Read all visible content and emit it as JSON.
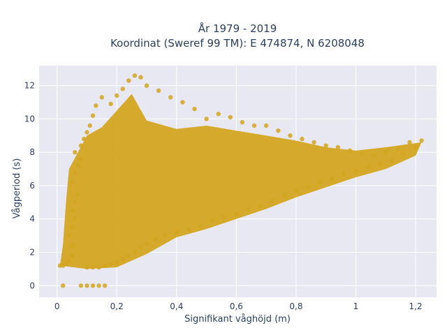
{
  "chart_data": {
    "type": "scatter",
    "title_line1": "År 1979 - 2019",
    "title_line2": "Koordinat (Sweref 99 TM): E 474874, N 6208048",
    "xlabel": "Signifikant våghöjd (m)",
    "ylabel": "Vågperiod (s)",
    "xlim": [
      -0.06,
      1.27
    ],
    "ylim": [
      -0.7,
      13.2
    ],
    "x_ticks": [
      0,
      0.2,
      0.4,
      0.6,
      0.8,
      1,
      1.2
    ],
    "x_tick_labels": [
      "0",
      "0,2",
      "0,4",
      "0,6",
      "0,8",
      "1",
      "1,2"
    ],
    "y_ticks": [
      0,
      2,
      4,
      6,
      8,
      10,
      12
    ],
    "y_tick_labels": [
      "0",
      "2",
      "4",
      "6",
      "8",
      "10",
      "12"
    ],
    "grid": true,
    "background_color": "#e8e8f2",
    "marker_color": "#d4a520",
    "point_density_note": "dense cloud",
    "series": [
      {
        "values": [
          [
            0.01,
            1.2
          ],
          [
            0.02,
            1.2
          ],
          [
            0.03,
            1.3
          ],
          [
            0.04,
            1.5
          ],
          [
            0.05,
            1.8
          ],
          [
            0.05,
            2.4
          ],
          [
            0.04,
            3.0
          ],
          [
            0.05,
            3.5
          ],
          [
            0.06,
            4.0
          ],
          [
            0.05,
            4.5
          ],
          [
            0.06,
            5.0
          ],
          [
            0.07,
            5.5
          ],
          [
            0.05,
            6.2
          ],
          [
            0.06,
            6.8
          ],
          [
            0.07,
            7.2
          ],
          [
            0.08,
            7.6
          ],
          [
            0.06,
            8.0
          ],
          [
            0.08,
            8.4
          ],
          [
            0.09,
            8.8
          ],
          [
            0.1,
            9.2
          ],
          [
            0.11,
            9.6
          ],
          [
            0.12,
            10.2
          ],
          [
            0.13,
            10.8
          ],
          [
            0.15,
            11.3
          ],
          [
            0.1,
            1.1
          ],
          [
            0.12,
            1.1
          ],
          [
            0.14,
            1.1
          ],
          [
            0.16,
            1.2
          ],
          [
            0.18,
            1.3
          ],
          [
            0.2,
            1.4
          ],
          [
            0.22,
            1.6
          ],
          [
            0.24,
            1.8
          ],
          [
            0.26,
            2.0
          ],
          [
            0.28,
            2.3
          ],
          [
            0.3,
            2.5
          ],
          [
            0.33,
            2.8
          ],
          [
            0.36,
            3.0
          ],
          [
            0.4,
            3.2
          ],
          [
            0.44,
            3.4
          ],
          [
            0.48,
            3.6
          ],
          [
            0.52,
            3.9
          ],
          [
            0.56,
            4.1
          ],
          [
            0.6,
            4.3
          ],
          [
            0.64,
            4.6
          ],
          [
            0.68,
            4.8
          ],
          [
            0.72,
            5.1
          ],
          [
            0.76,
            5.4
          ],
          [
            0.8,
            5.7
          ],
          [
            0.84,
            5.9
          ],
          [
            0.88,
            6.2
          ],
          [
            0.92,
            6.4
          ],
          [
            0.96,
            6.7
          ],
          [
            1.0,
            6.9
          ],
          [
            1.04,
            7.1
          ],
          [
            1.08,
            7.3
          ],
          [
            1.12,
            7.5
          ],
          [
            1.16,
            7.9
          ],
          [
            1.2,
            8.3
          ],
          [
            1.22,
            8.7
          ],
          [
            1.18,
            8.6
          ],
          [
            1.14,
            8.2
          ],
          [
            1.1,
            8.0
          ],
          [
            1.06,
            7.8
          ],
          [
            1.02,
            7.9
          ],
          [
            0.98,
            8.1
          ],
          [
            0.94,
            8.3
          ],
          [
            0.9,
            8.4
          ],
          [
            0.86,
            8.6
          ],
          [
            0.82,
            8.8
          ],
          [
            0.78,
            9.0
          ],
          [
            0.74,
            9.3
          ],
          [
            0.7,
            9.6
          ],
          [
            0.66,
            9.6
          ],
          [
            0.62,
            9.8
          ],
          [
            0.58,
            10.1
          ],
          [
            0.54,
            10.3
          ],
          [
            0.5,
            10.0
          ],
          [
            0.46,
            10.6
          ],
          [
            0.42,
            11.0
          ],
          [
            0.38,
            11.3
          ],
          [
            0.34,
            11.7
          ],
          [
            0.3,
            12.0
          ],
          [
            0.28,
            12.5
          ],
          [
            0.26,
            12.6
          ],
          [
            0.24,
            12.3
          ],
          [
            0.22,
            11.8
          ],
          [
            0.2,
            11.4
          ],
          [
            0.18,
            10.9
          ],
          [
            0.08,
            0.0
          ],
          [
            0.1,
            0.0
          ],
          [
            0.12,
            0.0
          ],
          [
            0.14,
            0.0
          ],
          [
            0.16,
            0.0
          ],
          [
            0.02,
            0.0
          ]
        ]
      }
    ]
  }
}
